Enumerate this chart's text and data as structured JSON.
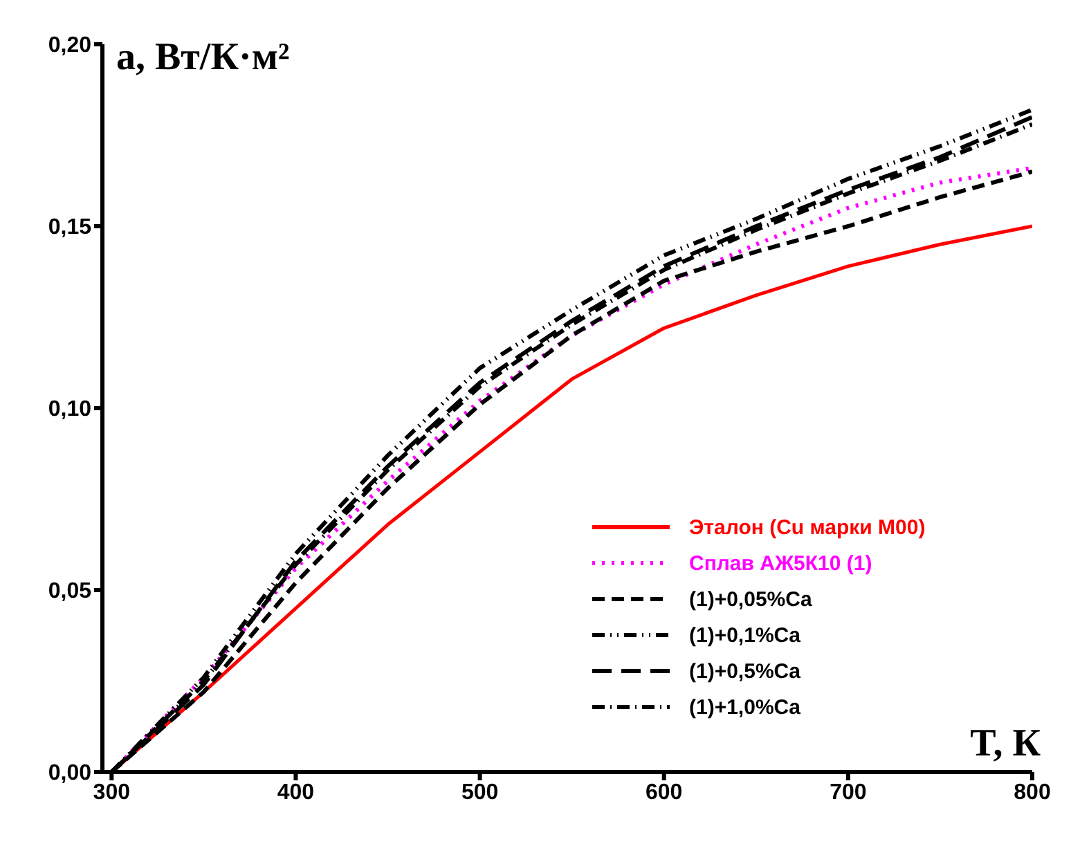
{
  "chart_data": {
    "type": "line",
    "ylabel": "a, Вт/К·м²",
    "xlabel": "T, К",
    "xlim": [
      295,
      800
    ],
    "ylim": [
      0,
      0.2
    ],
    "xticks": [
      300,
      400,
      500,
      600,
      700,
      800
    ],
    "yticks": [
      {
        "value": 0,
        "label": "0,00"
      },
      {
        "value": 0.05,
        "label": "0,05"
      },
      {
        "value": 0.1,
        "label": "0,10"
      },
      {
        "value": 0.15,
        "label": "0,15"
      },
      {
        "value": 0.2,
        "label": "0,20"
      }
    ],
    "x": [
      300,
      350,
      400,
      450,
      500,
      550,
      600,
      650,
      700,
      750,
      800
    ],
    "grid": false,
    "legend": "bottom right",
    "series": [
      {
        "name": "Эталон (Cu марки М00)",
        "color": "#ff0000",
        "line_style": "solid",
        "values": [
          0,
          0.022,
          0.045,
          0.068,
          0.088,
          0.108,
          0.122,
          0.131,
          0.139,
          0.145,
          0.15
        ]
      },
      {
        "name": "Сплав АЖ5К10 (1)",
        "color": "#ff00ff",
        "line_style": "dotted",
        "values": [
          0,
          0.026,
          0.056,
          0.08,
          0.102,
          0.12,
          0.134,
          0.145,
          0.155,
          0.162,
          0.166
        ]
      },
      {
        "name": "(1)+0,05%Ca",
        "color": "#000000",
        "line_style": "dashed",
        "values": [
          0,
          0.022,
          0.052,
          0.078,
          0.101,
          0.12,
          0.135,
          0.143,
          0.15,
          0.158,
          0.165
        ]
      },
      {
        "name": "(1)+0,1%Ca",
        "color": "#000000",
        "line_style": "dashed",
        "values": [
          0,
          0.026,
          0.06,
          0.087,
          0.111,
          0.127,
          0.142,
          0.152,
          0.163,
          0.172,
          0.182
        ]
      },
      {
        "name": "(1)+0,5%Ca",
        "color": "#000000",
        "line_style": "dashed",
        "values": [
          0,
          0.024,
          0.058,
          0.084,
          0.107,
          0.124,
          0.139,
          0.15,
          0.16,
          0.169,
          0.18
        ]
      },
      {
        "name": "(1)+1,0%Ca",
        "color": "#000000",
        "line_style": "dashed",
        "values": [
          0,
          0.025,
          0.057,
          0.083,
          0.106,
          0.123,
          0.138,
          0.149,
          0.159,
          0.168,
          0.178
        ]
      }
    ]
  }
}
